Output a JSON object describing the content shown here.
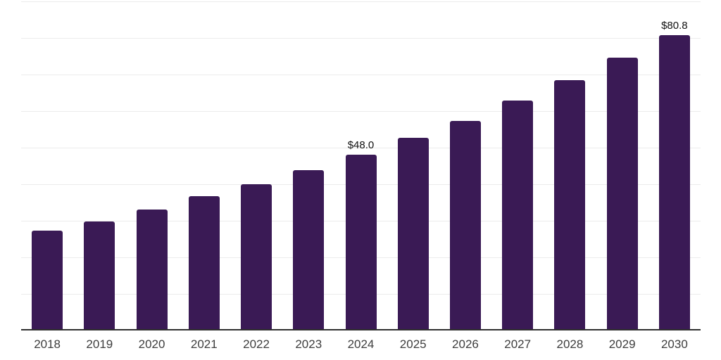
{
  "chart_data": {
    "type": "bar",
    "title": "",
    "xlabel": "",
    "ylabel": "",
    "categories": [
      "2018",
      "2019",
      "2020",
      "2021",
      "2022",
      "2023",
      "2024",
      "2025",
      "2026",
      "2027",
      "2028",
      "2029",
      "2030"
    ],
    "values": [
      27.3,
      29.8,
      33.1,
      36.8,
      40.0,
      43.8,
      48.0,
      52.6,
      57.3,
      62.9,
      68.5,
      74.6,
      80.8
    ],
    "point_labels": [
      null,
      null,
      null,
      null,
      null,
      null,
      "$48.0",
      null,
      null,
      null,
      null,
      null,
      "$80.8"
    ],
    "ylim": [
      0,
      90
    ],
    "grid_step": 10,
    "gridlines": "horizontal",
    "y_tick_labels_visible": false,
    "legend_position": "none"
  },
  "colors": {
    "bar": "#3a1a55",
    "gridline": "#ececec",
    "axis_line": "#2f2f2f",
    "value_label": "#111111",
    "tick_label": "#3d3d3d",
    "background": "#ffffff"
  }
}
